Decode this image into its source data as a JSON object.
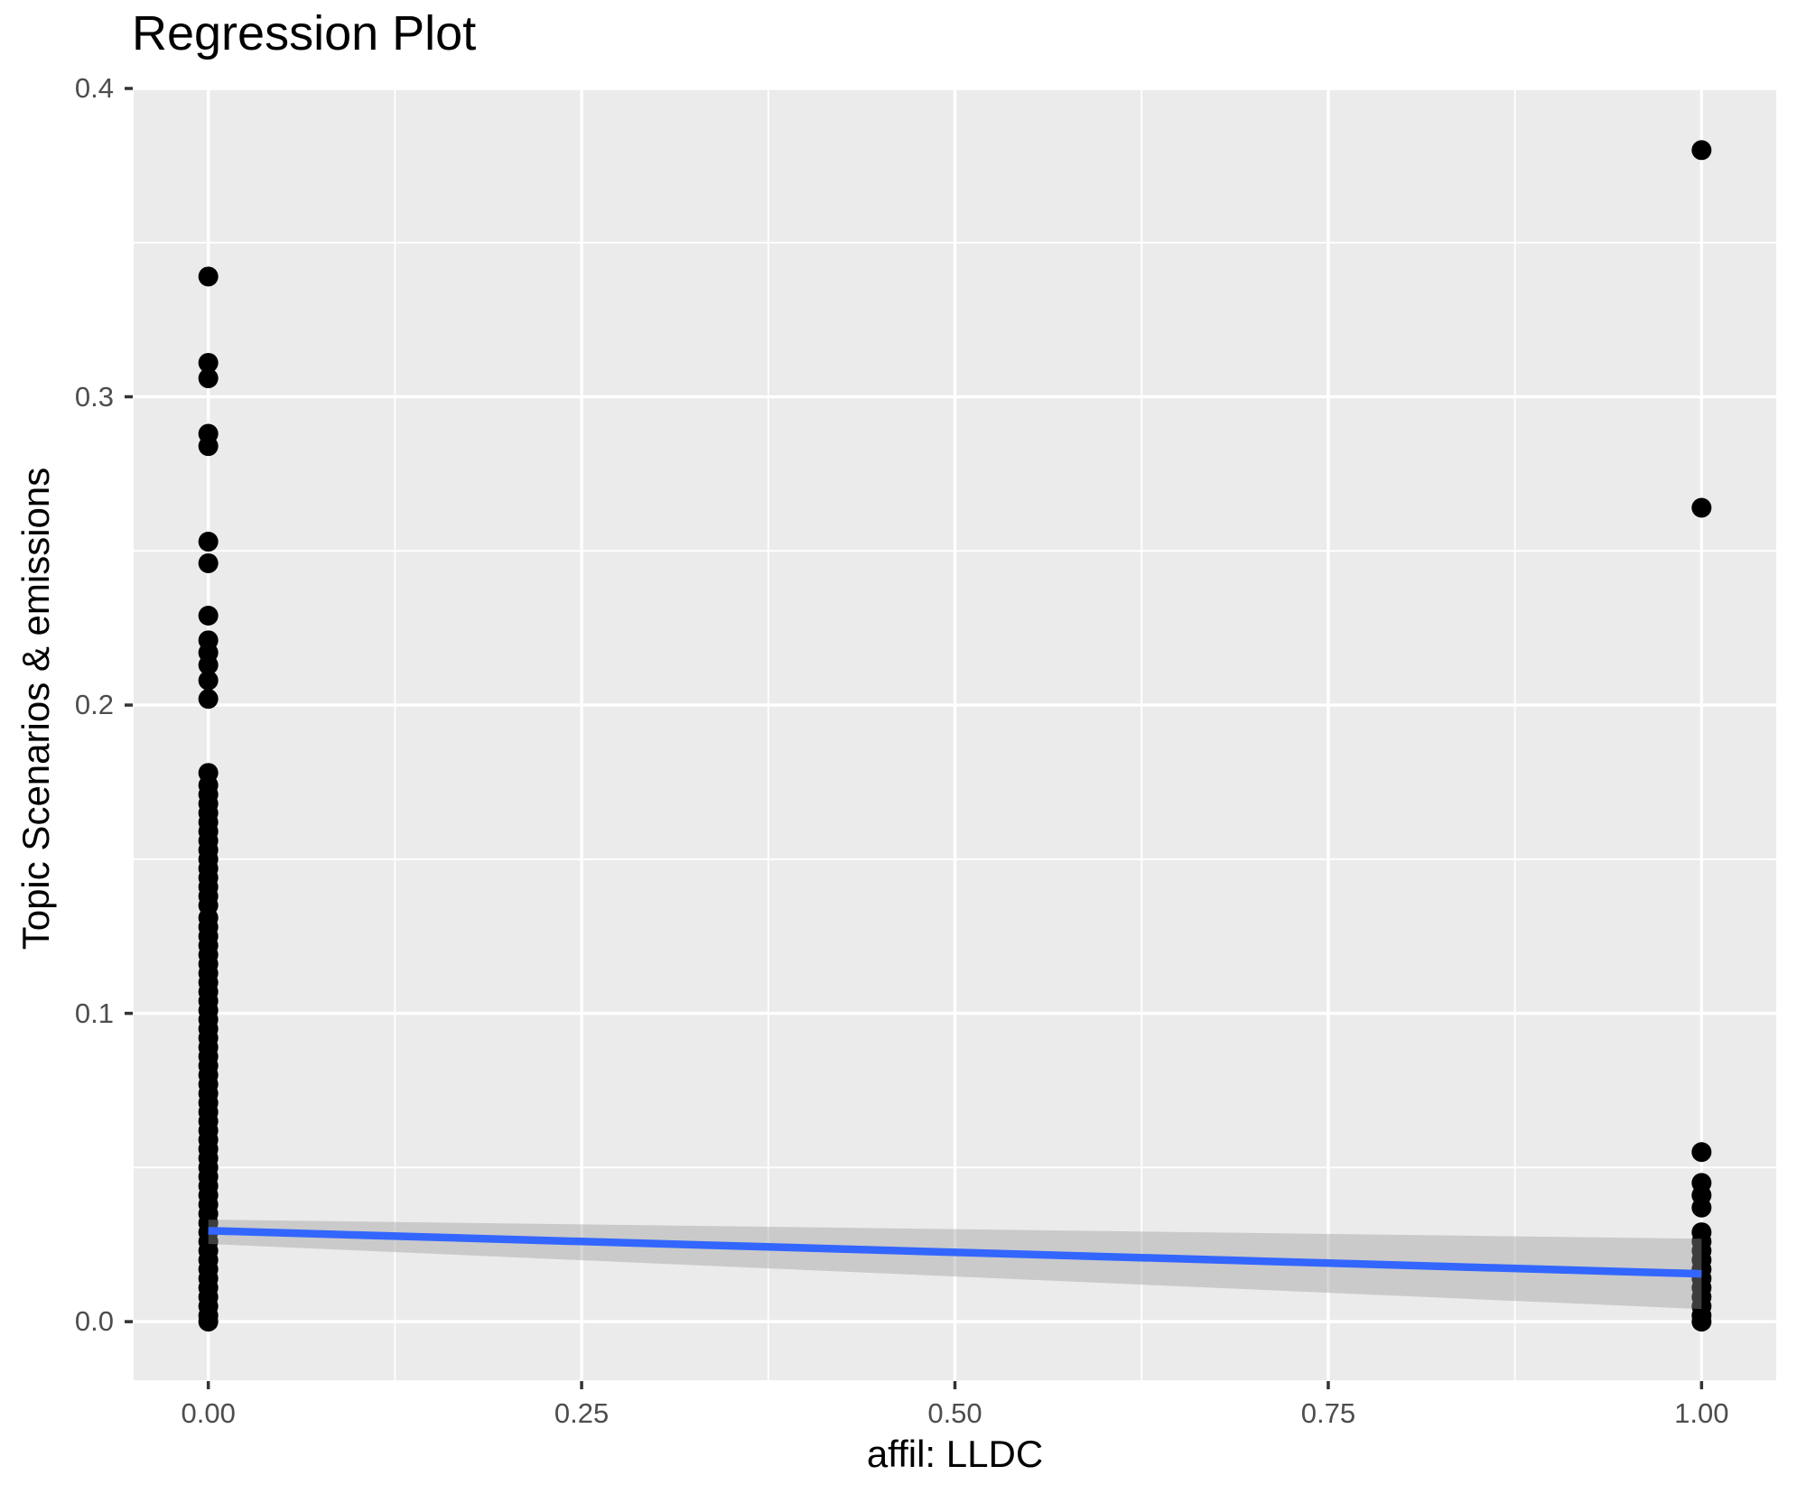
{
  "title": "Regression Plot",
  "colors": {
    "panel_background": "#EBEBEB",
    "grid": "#FFFFFF",
    "tick_mark": "#333333",
    "tick_text": "#4D4D4D",
    "title_text": "#000000",
    "point": "#000000",
    "regression_line": "#3366FF",
    "confidence_band": "#999999"
  },
  "chart_data": {
    "type": "scatter",
    "title": "Regression Plot",
    "xlabel": "affil: LLDC",
    "ylabel": "Topic Scenarios & emissions",
    "xlim": [
      -0.05,
      1.05
    ],
    "ylim": [
      -0.019,
      0.4
    ],
    "grid": {
      "major": true,
      "minor": true
    },
    "legend": "none",
    "x_ticks": {
      "values": [
        0,
        0.25,
        0.5,
        0.75,
        1.0
      ],
      "labels": [
        "0.00",
        "0.25",
        "0.50",
        "0.75",
        "1.00"
      ]
    },
    "y_ticks": {
      "values": [
        0,
        0.1,
        0.2,
        0.3,
        0.4
      ],
      "labels": [
        "0.0",
        "0.1",
        "0.2",
        "0.3",
        "0.4"
      ]
    },
    "series": [
      {
        "name": "observations",
        "geom": "point",
        "color": "#000000",
        "point_radius": 11,
        "points": [
          [
            0,
            0.339
          ],
          [
            0,
            0.311
          ],
          [
            0,
            0.306
          ],
          [
            0,
            0.288
          ],
          [
            0,
            0.284
          ],
          [
            0,
            0.253
          ],
          [
            0,
            0.246
          ],
          [
            0,
            0.229
          ],
          [
            0,
            0.221
          ],
          [
            0,
            0.217
          ],
          [
            0,
            0.213
          ],
          [
            0,
            0.208
          ],
          [
            0,
            0.202
          ],
          [
            0,
            0.178
          ],
          [
            0,
            0.174
          ],
          [
            0,
            0.171
          ],
          [
            0,
            0.168
          ],
          [
            0,
            0.165
          ],
          [
            0,
            0.162
          ],
          [
            0,
            0.159
          ],
          [
            0,
            0.156
          ],
          [
            0,
            0.153
          ],
          [
            0,
            0.15
          ],
          [
            0,
            0.147
          ],
          [
            0,
            0.144
          ],
          [
            0,
            0.141
          ],
          [
            0,
            0.138
          ],
          [
            0,
            0.135
          ],
          [
            0,
            0.131
          ],
          [
            0,
            0.128
          ],
          [
            0,
            0.125
          ],
          [
            0,
            0.122
          ],
          [
            0,
            0.119
          ],
          [
            0,
            0.116
          ],
          [
            0,
            0.113
          ],
          [
            0,
            0.11
          ],
          [
            0,
            0.107
          ],
          [
            0,
            0.104
          ],
          [
            0,
            0.101
          ],
          [
            0,
            0.098
          ],
          [
            0,
            0.095
          ],
          [
            0,
            0.092
          ],
          [
            0,
            0.089
          ],
          [
            0,
            0.086
          ],
          [
            0,
            0.083
          ],
          [
            0,
            0.08
          ],
          [
            0,
            0.077
          ],
          [
            0,
            0.074
          ],
          [
            0,
            0.071
          ],
          [
            0,
            0.068
          ],
          [
            0,
            0.065
          ],
          [
            0,
            0.062
          ],
          [
            0,
            0.059
          ],
          [
            0,
            0.056
          ],
          [
            0,
            0.053
          ],
          [
            0,
            0.05
          ],
          [
            0,
            0.047
          ],
          [
            0,
            0.044
          ],
          [
            0,
            0.041
          ],
          [
            0,
            0.038
          ],
          [
            0,
            0.035
          ],
          [
            0,
            0.032
          ],
          [
            0,
            0.029
          ],
          [
            0,
            0.026
          ],
          [
            0,
            0.023
          ],
          [
            0,
            0.02
          ],
          [
            0,
            0.017
          ],
          [
            0,
            0.014
          ],
          [
            0,
            0.011
          ],
          [
            0,
            0.008
          ],
          [
            0,
            0.005
          ],
          [
            0,
            0.002
          ],
          [
            0,
            0.0
          ],
          [
            1,
            0.38
          ],
          [
            1,
            0.264
          ],
          [
            1,
            0.055
          ],
          [
            1,
            0.045
          ],
          [
            1,
            0.041
          ],
          [
            1,
            0.037
          ],
          [
            1,
            0.029
          ],
          [
            1,
            0.026
          ],
          [
            1,
            0.023
          ],
          [
            1,
            0.02
          ],
          [
            1,
            0.017
          ],
          [
            1,
            0.014
          ],
          [
            1,
            0.011
          ],
          [
            1,
            0.008
          ],
          [
            1,
            0.005
          ],
          [
            1,
            0.002
          ],
          [
            1,
            0.0
          ]
        ]
      },
      {
        "name": "confidence-band",
        "geom": "ribbon",
        "color": "#999999",
        "opacity": 0.4,
        "upper": [
          [
            0,
            0.0331
          ],
          [
            1,
            0.0269
          ]
        ],
        "lower": [
          [
            0,
            0.0252
          ],
          [
            1,
            0.0041
          ]
        ]
      },
      {
        "name": "regression-line",
        "geom": "line",
        "color": "#3366FF",
        "stroke_width": 8.5,
        "points": [
          [
            0,
            0.0295
          ],
          [
            1,
            0.0155
          ]
        ]
      }
    ]
  }
}
